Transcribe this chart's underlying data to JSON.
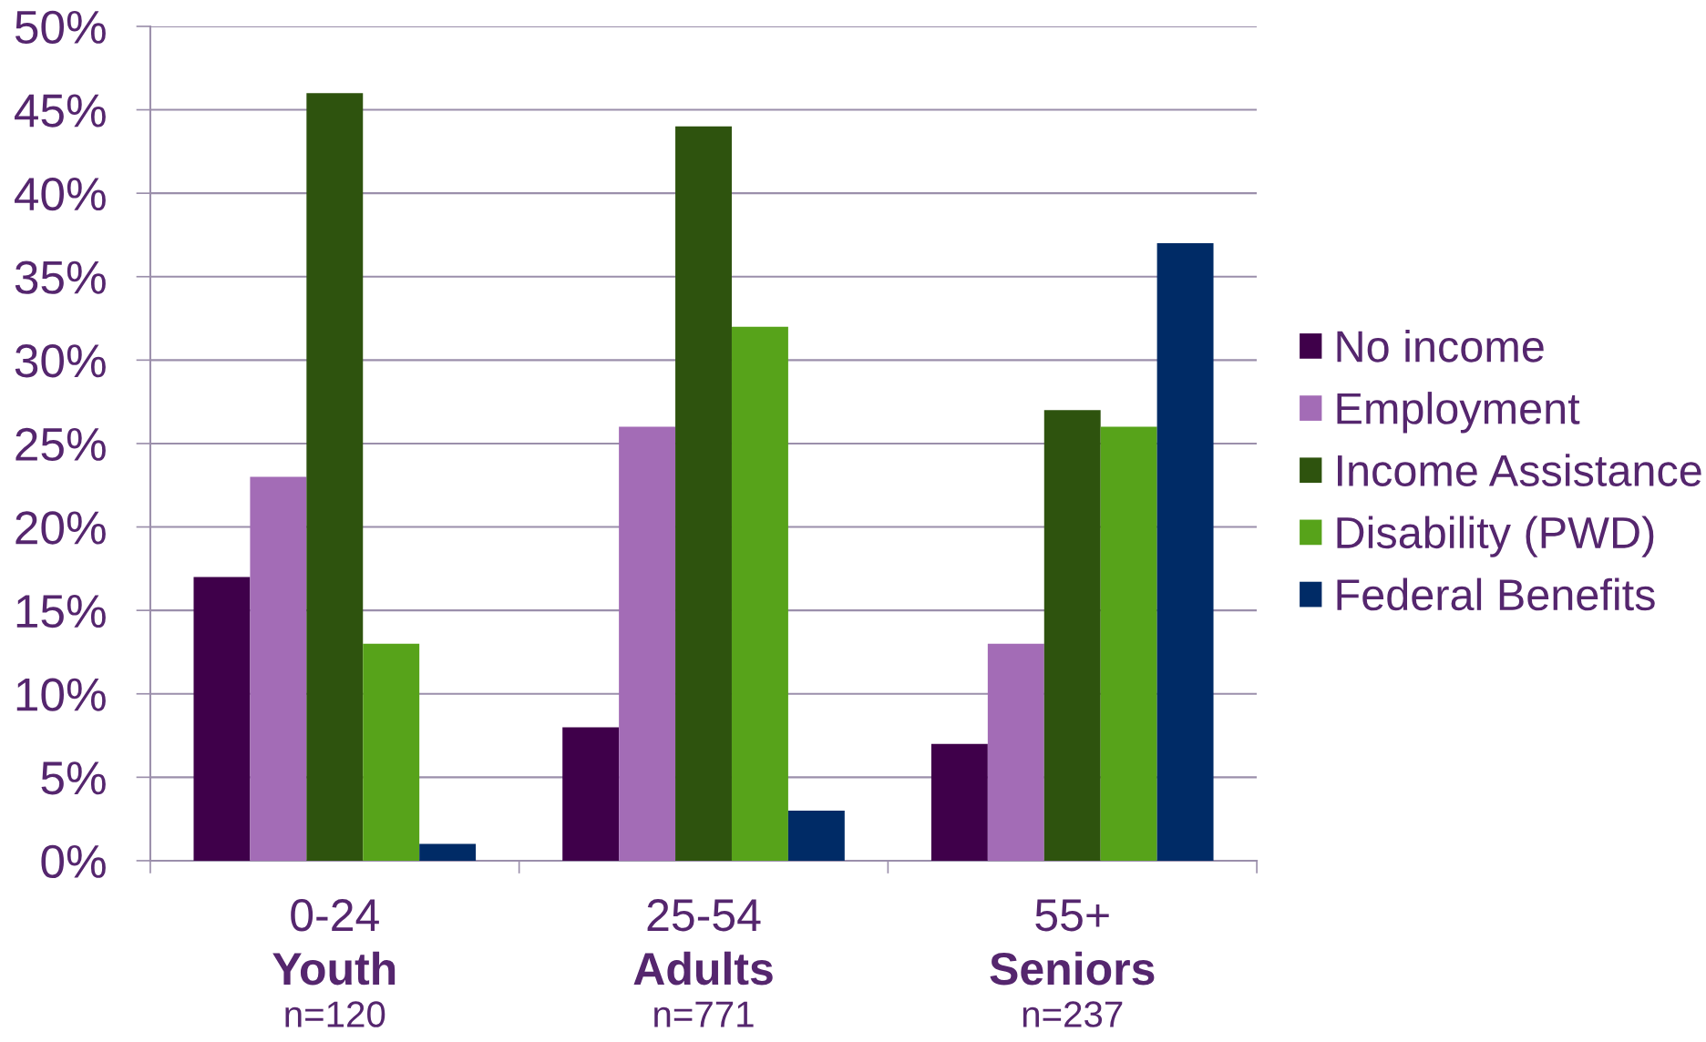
{
  "chart_data": {
    "type": "bar",
    "categories": [
      "0-24\nYouth\nn=120",
      "25-54\nAdults\nn=771",
      "55+\nSeniors\nn=237"
    ],
    "series": [
      {
        "name": "No income",
        "color": "#3f004a",
        "values": [
          17,
          8,
          7
        ]
      },
      {
        "name": "Employment",
        "color": "#a36cb6",
        "values": [
          23,
          26,
          13
        ]
      },
      {
        "name": "Income Assistance",
        "color": "#2e530e",
        "values": [
          46,
          44,
          27
        ]
      },
      {
        "name": "Disability (PWD)",
        "color": "#57a31a",
        "values": [
          13,
          32,
          26
        ]
      },
      {
        "name": "Federal Benefits",
        "color": "#002b66",
        "values": [
          1,
          3,
          37
        ]
      }
    ],
    "ylim": [
      0,
      50
    ],
    "yticks": [
      {
        "value": 0,
        "label": "0%"
      },
      {
        "value": 5,
        "label": "5%"
      },
      {
        "value": 10,
        "label": "10%"
      },
      {
        "value": 15,
        "label": "15%"
      },
      {
        "value": 20,
        "label": "20%"
      },
      {
        "value": 25,
        "label": "25%"
      },
      {
        "value": 30,
        "label": "30%"
      },
      {
        "value": 35,
        "label": "35%"
      },
      {
        "value": 40,
        "label": "40%"
      },
      {
        "value": 45,
        "label": "45%"
      },
      {
        "value": 50,
        "label": "50%"
      }
    ],
    "grid": "y",
    "legend": "right"
  }
}
